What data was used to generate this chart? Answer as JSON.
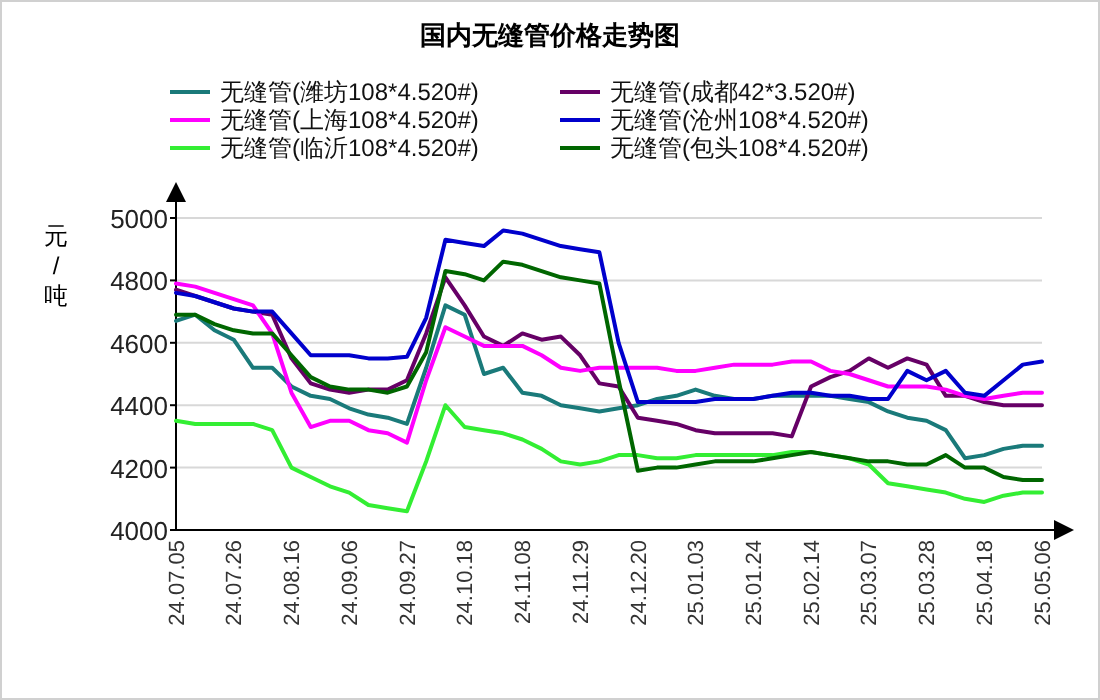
{
  "chart_data": {
    "type": "line",
    "title": "国内无缝管价格走势图",
    "ylabel": "元/吨",
    "legend": "top",
    "grid": "y",
    "ylim": [
      4000,
      5000
    ],
    "yticks": [
      4000,
      4200,
      4400,
      4600,
      4800,
      5000
    ],
    "categories": [
      "24.07.05",
      null,
      null,
      "24.07.26",
      null,
      null,
      "24.08.16",
      null,
      null,
      "24.09.06",
      null,
      null,
      "24.09.27",
      null,
      null,
      "24.10.18",
      null,
      null,
      "24.11.08",
      null,
      null,
      "24.11.29",
      null,
      null,
      "24.12.20",
      null,
      null,
      "25.01.03",
      null,
      null,
      "25.01.24",
      null,
      null,
      "25.02.14",
      null,
      null,
      "25.03.07",
      null,
      null,
      "25.03.28",
      null,
      null,
      "25.04.18",
      null,
      null,
      "25.05.06"
    ],
    "series": [
      {
        "name": "无缝管(潍坊108*4.520#)",
        "color": "#1a7a7a",
        "values": [
          4670,
          4690,
          4640,
          4610,
          4520,
          4520,
          4460,
          4430,
          4420,
          4390,
          4370,
          4360,
          4340,
          4520,
          4720,
          4690,
          4500,
          4520,
          4440,
          4430,
          4400,
          4390,
          4380,
          4390,
          4400,
          4420,
          4430,
          4450,
          4430,
          4420,
          4420,
          4430,
          4430,
          4430,
          4430,
          4420,
          4410,
          4380,
          4360,
          4350,
          4320,
          4230,
          4240,
          4260,
          4270,
          4270
        ]
      },
      {
        "name": "无缝管(成都42*3.520#)",
        "color": "#660066",
        "values": [
          4770,
          4750,
          4730,
          4710,
          4700,
          4690,
          4550,
          4470,
          4450,
          4440,
          4450,
          4450,
          4480,
          4630,
          4810,
          4720,
          4620,
          4590,
          4630,
          4610,
          4620,
          4560,
          4470,
          4460,
          4360,
          4350,
          4340,
          4320,
          4310,
          4310,
          4310,
          4310,
          4300,
          4460,
          4490,
          4510,
          4550,
          4520,
          4550,
          4530,
          4430,
          4430,
          4410,
          4400,
          4400,
          4400
        ]
      },
      {
        "name": "无缝管(上海108*4.520#)",
        "color": "#ff00ff",
        "values": [
          4790,
          4780,
          4760,
          4740,
          4720,
          4630,
          4440,
          4330,
          4350,
          4350,
          4320,
          4310,
          4280,
          4480,
          4650,
          4620,
          4590,
          4590,
          4590,
          4560,
          4520,
          4510,
          4520,
          4520,
          4520,
          4520,
          4510,
          4510,
          4520,
          4530,
          4530,
          4530,
          4540,
          4540,
          4510,
          4500,
          4480,
          4460,
          4460,
          4460,
          4450,
          4430,
          4420,
          4430,
          4440,
          4440
        ]
      },
      {
        "name": "无缝管(沧州108*4.520#)",
        "color": "#0000cc",
        "values": [
          4760,
          4750,
          4730,
          4710,
          4700,
          4700,
          4630,
          4560,
          4560,
          4560,
          4550,
          4550,
          4555,
          4680,
          4930,
          4920,
          4910,
          4960,
          4950,
          4930,
          4910,
          4900,
          4890,
          4600,
          4410,
          4410,
          4410,
          4410,
          4420,
          4420,
          4420,
          4430,
          4440,
          4440,
          4430,
          4430,
          4420,
          4420,
          4510,
          4480,
          4510,
          4440,
          4430,
          4480,
          4530,
          4540
        ]
      },
      {
        "name": "无缝管(临沂108*4.520#)",
        "color": "#33ee33",
        "values": [
          4350,
          4340,
          4340,
          4340,
          4340,
          4320,
          4200,
          4170,
          4140,
          4120,
          4080,
          4070,
          4060,
          4220,
          4400,
          4330,
          4320,
          4310,
          4290,
          4260,
          4220,
          4210,
          4220,
          4240,
          4240,
          4230,
          4230,
          4240,
          4240,
          4240,
          4240,
          4240,
          4250,
          4250,
          4240,
          4230,
          4210,
          4150,
          4140,
          4130,
          4120,
          4100,
          4090,
          4110,
          4120,
          4120
        ]
      },
      {
        "name": "无缝管(包头108*4.520#)",
        "color": "#006600",
        "values": [
          4690,
          4690,
          4660,
          4640,
          4630,
          4630,
          4560,
          4490,
          4460,
          4450,
          4450,
          4440,
          4460,
          4570,
          4830,
          4820,
          4800,
          4860,
          4850,
          4830,
          4810,
          4800,
          4790,
          4480,
          4190,
          4200,
          4200,
          4210,
          4220,
          4220,
          4220,
          4230,
          4240,
          4250,
          4240,
          4230,
          4220,
          4220,
          4210,
          4210,
          4240,
          4200,
          4200,
          4170,
          4160,
          4160
        ]
      }
    ]
  }
}
